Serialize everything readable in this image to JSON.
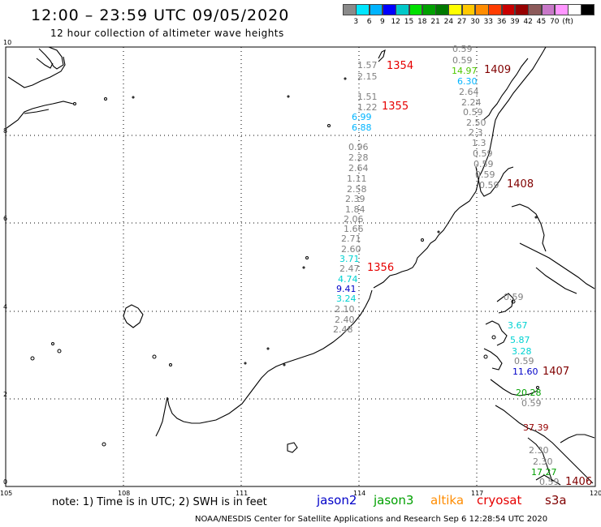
{
  "header": {
    "title": "12:00 – 23:59 UTC 09/05/2020",
    "subtitle": "12 hour collection of altimeter wave heights"
  },
  "colorbar": {
    "colors": [
      "#8a8a8a",
      "#00e6ff",
      "#00b4ff",
      "#0000ff",
      "#00c8c8",
      "#00e000",
      "#00a000",
      "#007800",
      "#ffff00",
      "#ffc800",
      "#ff8c00",
      "#ff3c00",
      "#c80000",
      "#960000",
      "#8c5a5a",
      "#c878c8",
      "#ff96ff",
      "#ffffff",
      "#000000"
    ],
    "labels": [
      "3",
      "6",
      "9",
      "12",
      "15",
      "18",
      "21",
      "24",
      "27",
      "30",
      "33",
      "36",
      "39",
      "42",
      "45",
      "70",
      "(ft)"
    ]
  },
  "axes": {
    "lon_ticks": [
      "105",
      "108",
      "111",
      "114",
      "117",
      "120"
    ],
    "lat_ticks": [
      "0",
      "2",
      "4",
      "6",
      "8",
      "10"
    ]
  },
  "tracks": [
    {
      "text": "1.57",
      "color": "#808080"
    },
    {
      "text": "2.15",
      "color": "#808080"
    },
    {
      "text": "1.51",
      "color": "#808080"
    },
    {
      "text": "1.22",
      "color": "#808080"
    },
    {
      "text": "6.99",
      "color": "#00b4ff"
    },
    {
      "text": "6.88",
      "color": "#00b4ff"
    },
    {
      "text": "0.96",
      "color": "#808080"
    },
    {
      "text": "2.28",
      "color": "#808080"
    },
    {
      "text": "2.64",
      "color": "#808080"
    },
    {
      "text": "1.11",
      "color": "#808080"
    },
    {
      "text": "2.58",
      "color": "#808080"
    },
    {
      "text": "2.39",
      "color": "#808080"
    },
    {
      "text": "1.84",
      "color": "#808080"
    },
    {
      "text": "2.06",
      "color": "#808080"
    },
    {
      "text": "1.66",
      "color": "#808080"
    },
    {
      "text": "2.71",
      "color": "#808080"
    },
    {
      "text": "2.60",
      "color": "#808080"
    },
    {
      "text": "3.71",
      "color": "#00d2d2"
    },
    {
      "text": "2.47",
      "color": "#808080"
    },
    {
      "text": "4.74",
      "color": "#00d2d2"
    },
    {
      "text": "9.41",
      "color": "#0000c8"
    },
    {
      "text": "3.24",
      "color": "#00d2d2"
    },
    {
      "text": "2.10",
      "color": "#808080"
    },
    {
      "text": "2.40",
      "color": "#808080"
    },
    {
      "text": "2.48",
      "color": "#808080"
    },
    {
      "text": "0.59",
      "color": "#808080"
    },
    {
      "text": "0.59",
      "color": "#808080"
    },
    {
      "text": "14.97",
      "color": "#50c800"
    },
    {
      "text": "6.30",
      "color": "#00b4ff"
    },
    {
      "text": "2.64",
      "color": "#808080"
    },
    {
      "text": "2.24",
      "color": "#808080"
    },
    {
      "text": "0.59",
      "color": "#808080"
    },
    {
      "text": "2.50",
      "color": "#808080"
    },
    {
      "text": "2.3",
      "color": "#808080"
    },
    {
      "text": "1.3",
      "color": "#808080"
    },
    {
      "text": "0.59",
      "color": "#808080"
    },
    {
      "text": "0.59",
      "color": "#808080"
    },
    {
      "text": "0.59",
      "color": "#808080"
    },
    {
      "text": "0.59",
      "color": "#808080"
    },
    {
      "text": "0.59",
      "color": "#808080"
    },
    {
      "text": "3.67",
      "color": "#00d2d2"
    },
    {
      "text": "5.87",
      "color": "#00d2d2"
    },
    {
      "text": "3.28",
      "color": "#00d2d2"
    },
    {
      "text": "0.59",
      "color": "#808080"
    },
    {
      "text": "11.60",
      "color": "#0000c8"
    },
    {
      "text": "20.28",
      "color": "#00a000"
    },
    {
      "text": "0.59",
      "color": "#808080"
    },
    {
      "text": "37.39",
      "color": "#960000"
    },
    {
      "text": "2.30",
      "color": "#808080"
    },
    {
      "text": "2.30",
      "color": "#808080"
    },
    {
      "text": "17.27",
      "color": "#00a000"
    },
    {
      "text": "0.59",
      "color": "#808080"
    }
  ],
  "orbits": [
    {
      "text": "1354",
      "color": "#e60000"
    },
    {
      "text": "1355",
      "color": "#e60000"
    },
    {
      "text": "1356",
      "color": "#e60000"
    },
    {
      "text": "1409",
      "color": "#800000"
    },
    {
      "text": "1408",
      "color": "#800000"
    },
    {
      "text": "1407",
      "color": "#800000"
    },
    {
      "text": "1406",
      "color": "#800000"
    }
  ],
  "footer": {
    "note": "note: 1) Time is in UTC; 2) SWH is in feet",
    "satellites": [
      {
        "text": "jason2",
        "color": "#0000c8"
      },
      {
        "text": "jason3",
        "color": "#00a000"
      },
      {
        "text": "altika",
        "color": "#ff8c00"
      },
      {
        "text": "cryosat",
        "color": "#e60000"
      },
      {
        "text": "s3a",
        "color": "#800000"
      }
    ],
    "credit": "NOAA/NESDIS Center for Satellite Applications and Research    Sep  6 12:28:54 UTC 2020"
  }
}
